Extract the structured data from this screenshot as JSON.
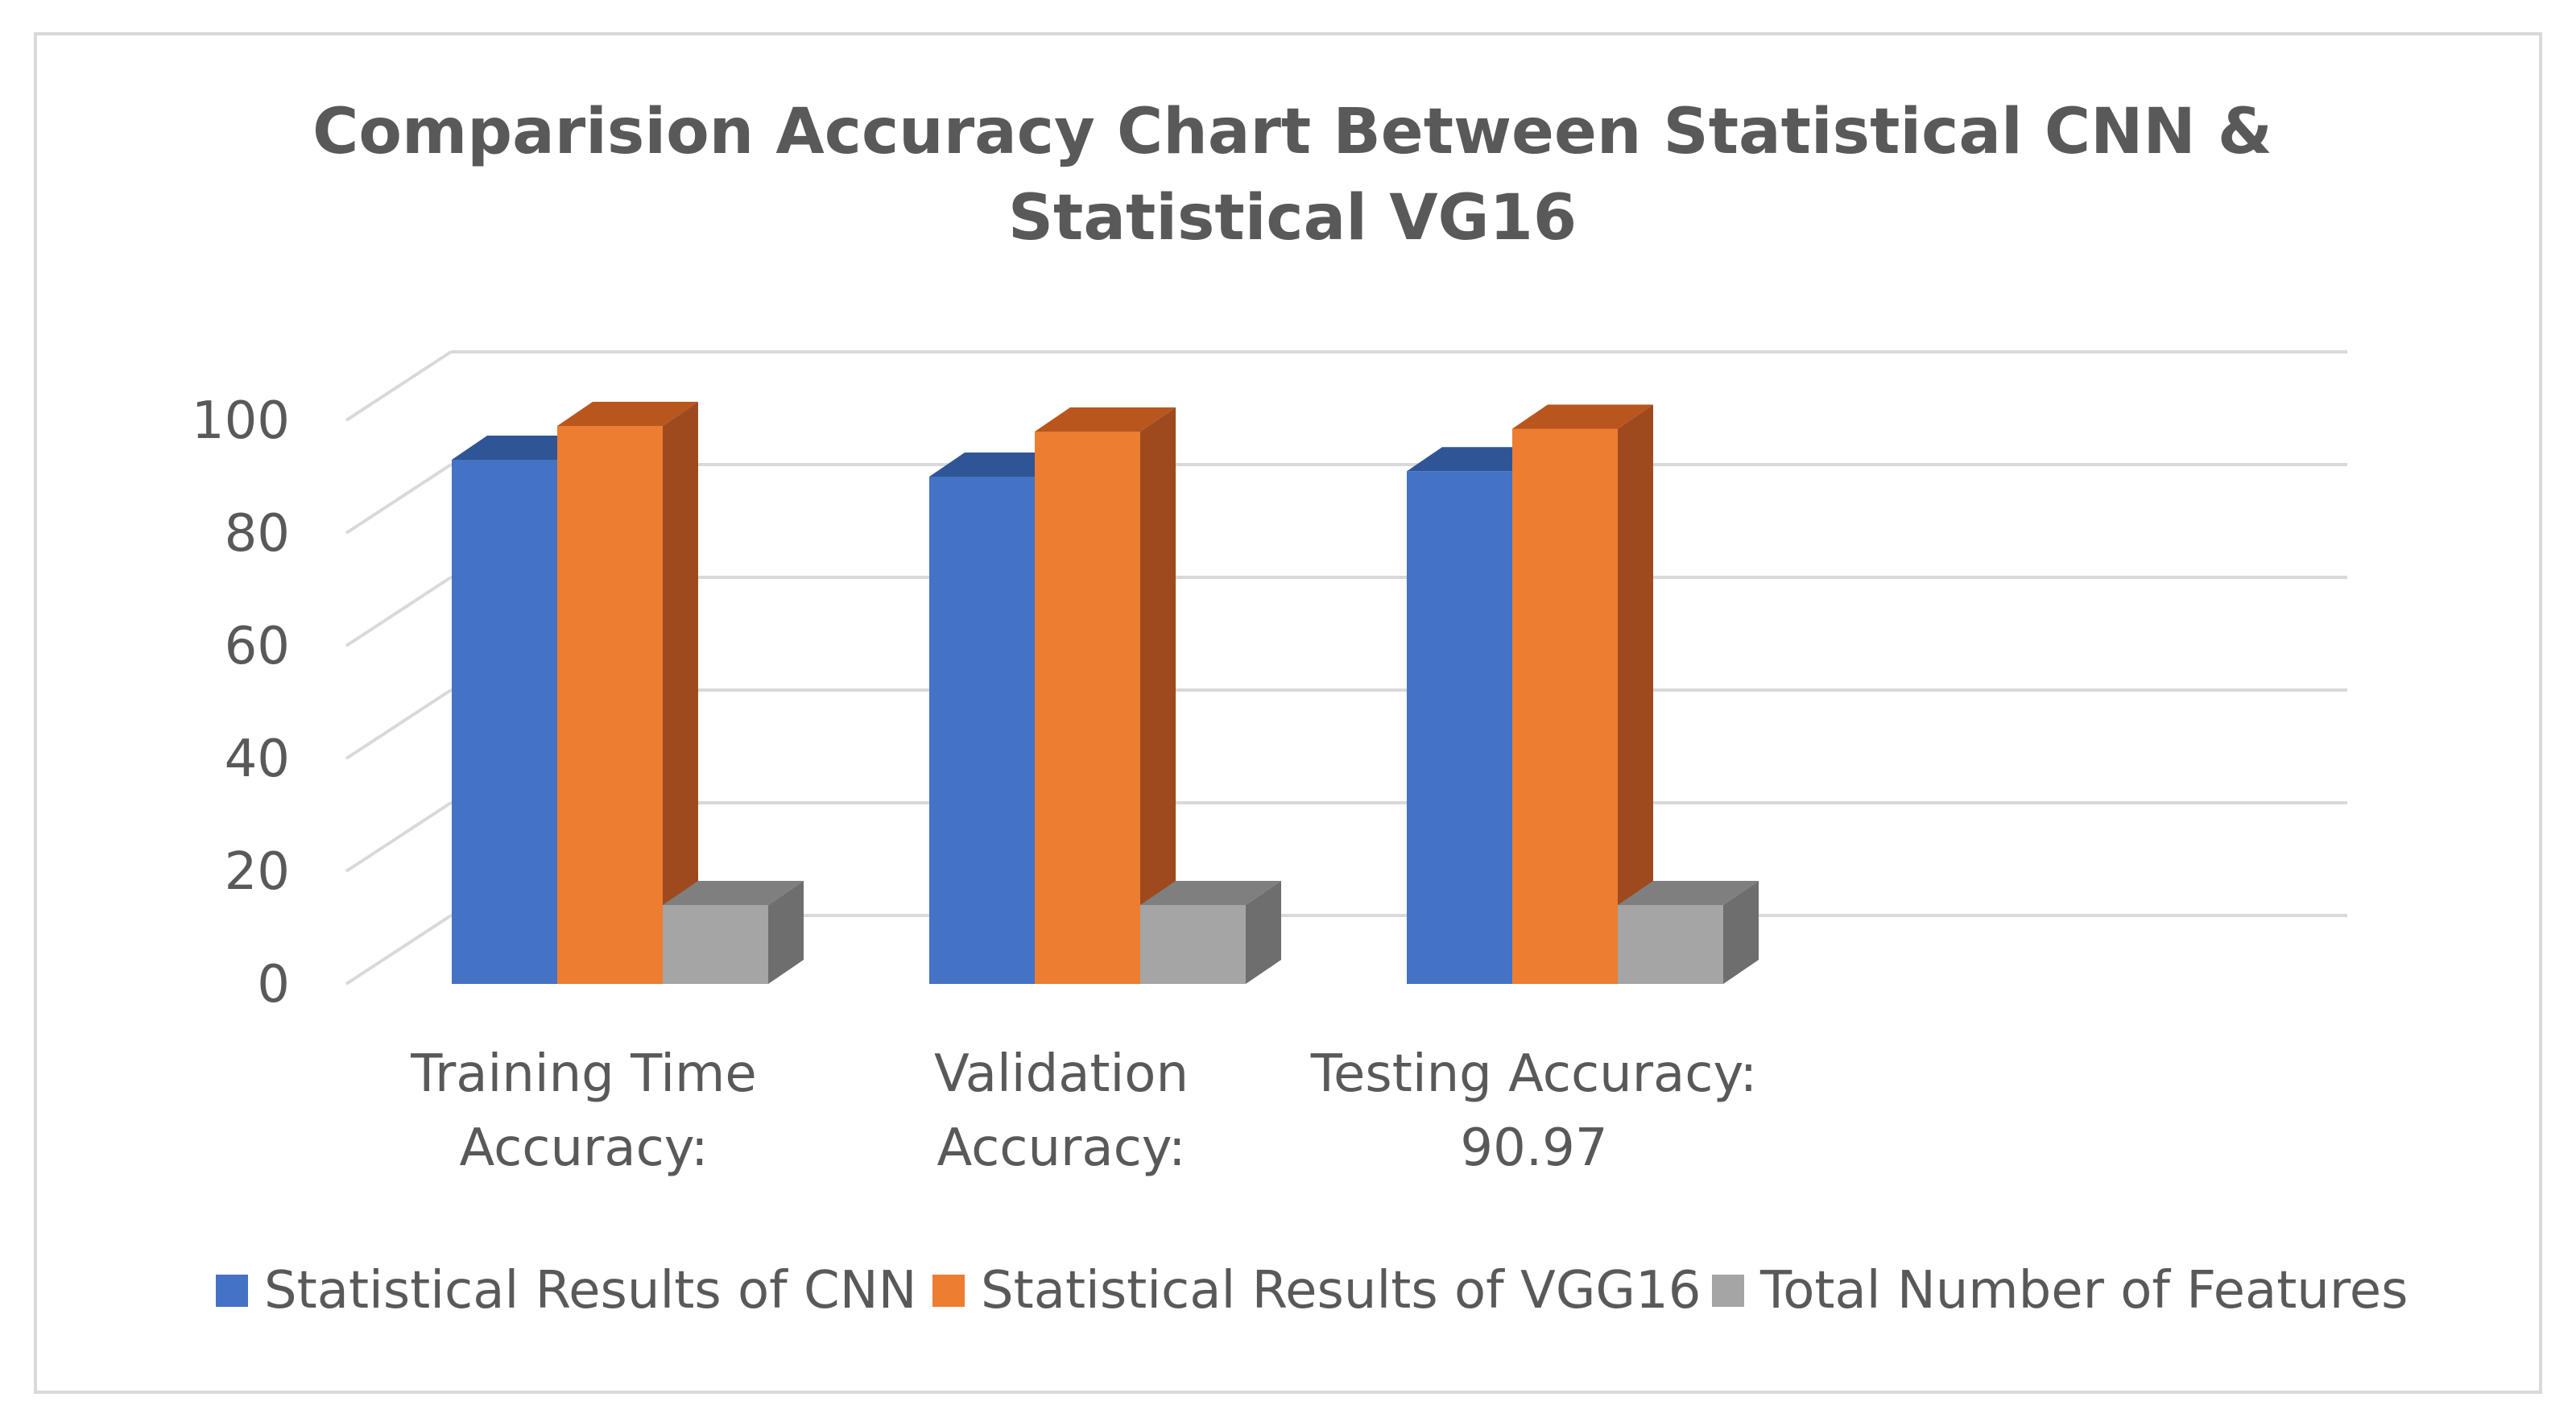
{
  "chart_data": {
    "type": "bar",
    "title": "Comparision Accuracy Chart Between Statistical CNN & Statistical VG16",
    "title_lines": [
      "Comparision Accuracy Chart Between Statistical CNN &",
      "Statistical VG16"
    ],
    "categories": [
      "Training Time Accuracy:",
      "Validation Accuracy:",
      "Testing Accuracy: 90.97"
    ],
    "category_lines": [
      [
        "Training Time",
        "Accuracy:"
      ],
      [
        "Validation",
        "Accuracy:"
      ],
      [
        "Testing Accuracy:",
        "90.97"
      ]
    ],
    "series": [
      {
        "name": "Statistical Results of CNN",
        "values": [
          93,
          90,
          90.97
        ],
        "color": "#4472C4",
        "top_color": "#2F5597",
        "side_color": "#2F5597"
      },
      {
        "name": "Statistical Results of VGG16",
        "values": [
          99,
          98,
          98.5
        ],
        "color": "#ED7D31",
        "top_color": "#B8561E",
        "side_color": "#9E4A1E"
      },
      {
        "name": "Total Number of Features",
        "values": [
          14,
          14,
          14
        ],
        "color": "#A5A5A5",
        "top_color": "#7F7F7F",
        "side_color": "#6E6E6E"
      }
    ],
    "yticks": [
      0,
      20,
      40,
      60,
      80,
      100
    ],
    "ylim": [
      0,
      100
    ],
    "grid": true,
    "legend": "bottom",
    "xlabel": "",
    "ylabel": ""
  }
}
